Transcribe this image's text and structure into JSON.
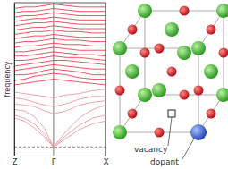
{
  "chart_data": {
    "type": "line",
    "x": [
      0,
      0.11,
      0.22,
      0.33,
      0.43,
      0.57,
      0.71,
      0.86,
      1
    ],
    "xlim": [
      0,
      1
    ],
    "xticks": [
      {
        "value": 0,
        "label": "Z"
      },
      {
        "value": 0.43,
        "label": "Γ"
      },
      {
        "value": 1,
        "label": "X"
      }
    ],
    "ylim": [
      -0.6,
      10
    ],
    "yticks": [],
    "y_label": "frequency",
    "tick_labels": "x",
    "grid": true,
    "zero_line": 0,
    "series": [
      {
        "color": "#f08a99",
        "values": [
          2.0,
          1.8,
          1.3,
          0.7,
          0,
          0.6,
          1.2,
          1.6,
          1.8
        ]
      },
      {
        "color": "#f08a99",
        "values": [
          2.2,
          2.0,
          1.6,
          0.9,
          0,
          0.8,
          1.5,
          2.0,
          2.2
        ]
      },
      {
        "color": "#f08a99",
        "values": [
          2.6,
          2.5,
          2.1,
          1.3,
          0,
          1.1,
          2.0,
          2.6,
          2.9
        ]
      },
      {
        "color": "#f08a99",
        "values": [
          3.0,
          2.9,
          2.8,
          2.5,
          2.3,
          2.5,
          2.9,
          3.1,
          3.2
        ]
      },
      {
        "color": "#f08a99",
        "values": [
          3.4,
          3.3,
          3.1,
          2.9,
          2.8,
          3.0,
          3.3,
          3.5,
          3.5
        ]
      },
      {
        "color": "#f08a99",
        "values": [
          3.8,
          3.7,
          3.6,
          3.5,
          3.4,
          3.6,
          3.7,
          3.9,
          4.0
        ]
      },
      {
        "color": "#e8283c",
        "values": [
          4.3,
          4.4,
          4.5,
          4.6,
          4.7,
          4.6,
          4.5,
          4.4,
          4.3
        ]
      },
      {
        "color": "#e8283c",
        "values": [
          4.6,
          4.7,
          4.9,
          5.0,
          5.1,
          5.0,
          4.8,
          4.7,
          4.7
        ]
      },
      {
        "color": "#e8283c",
        "values": [
          5.0,
          5.0,
          5.1,
          5.3,
          5.4,
          5.3,
          5.2,
          5.0,
          5.0
        ]
      },
      {
        "color": "#e8283c",
        "values": [
          5.3,
          5.4,
          5.5,
          5.6,
          5.7,
          5.6,
          5.5,
          5.4,
          5.4
        ]
      },
      {
        "color": "#e8283c",
        "values": [
          5.6,
          5.7,
          5.8,
          5.9,
          6.0,
          6.0,
          5.9,
          5.8,
          5.7
        ]
      },
      {
        "color": "#e8283c",
        "values": [
          6.0,
          6.0,
          6.1,
          6.2,
          6.3,
          6.2,
          6.2,
          6.1,
          6.0
        ]
      },
      {
        "color": "#e8283c",
        "values": [
          6.3,
          6.3,
          6.4,
          6.5,
          6.6,
          6.5,
          6.4,
          6.4,
          6.3
        ]
      },
      {
        "color": "#e8283c",
        "values": [
          6.6,
          6.6,
          6.7,
          6.8,
          6.9,
          6.8,
          6.7,
          6.7,
          6.7
        ]
      },
      {
        "color": "#e8283c",
        "values": [
          6.9,
          7.0,
          7.0,
          7.1,
          7.2,
          7.1,
          7.1,
          7.0,
          7.0
        ]
      },
      {
        "color": "#e8283c",
        "values": [
          7.2,
          7.3,
          7.3,
          7.4,
          7.5,
          7.4,
          7.4,
          7.3,
          7.3
        ]
      },
      {
        "color": "#e8283c",
        "values": [
          7.5,
          7.6,
          7.7,
          7.7,
          7.8,
          7.7,
          7.6,
          7.6,
          7.6
        ]
      },
      {
        "color": "#e8283c",
        "values": [
          7.8,
          7.9,
          8.0,
          8.0,
          8.1,
          8.0,
          8.0,
          7.9,
          7.9
        ]
      },
      {
        "color": "#e8283c",
        "values": [
          8.1,
          8.2,
          8.3,
          8.3,
          8.4,
          8.3,
          8.2,
          8.2,
          8.2
        ]
      },
      {
        "color": "#e8283c",
        "values": [
          8.4,
          8.5,
          8.6,
          8.6,
          8.7,
          8.6,
          8.5,
          8.5,
          8.5
        ]
      },
      {
        "color": "#e8283c",
        "values": [
          8.7,
          8.8,
          8.9,
          8.9,
          9.0,
          8.9,
          8.8,
          8.8,
          8.8
        ]
      },
      {
        "color": "#e8283c",
        "values": [
          9.0,
          9.1,
          9.1,
          9.2,
          9.3,
          9.2,
          9.1,
          9.1,
          9.1
        ]
      },
      {
        "color": "#e8283c",
        "values": [
          9.3,
          9.4,
          9.4,
          9.5,
          9.6,
          9.5,
          9.4,
          9.4,
          9.4
        ]
      },
      {
        "color": "#e8283c",
        "values": [
          9.6,
          9.7,
          9.7,
          9.8,
          9.9,
          9.8,
          9.7,
          9.7,
          9.7
        ]
      }
    ]
  },
  "diagram": {
    "labels": [
      "vacancy",
      "dopant"
    ]
  }
}
